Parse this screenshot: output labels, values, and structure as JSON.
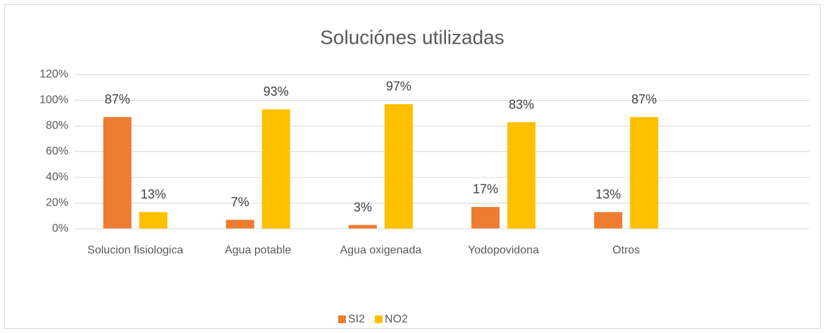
{
  "chart_data": {
    "type": "bar",
    "title": "Soluciónes utilizadas",
    "categories": [
      "Solucion fisiologica",
      "Agua potable",
      "Agua oxigenada",
      "Yodopovidona",
      "Otros",
      null
    ],
    "series": [
      {
        "name": "SI2",
        "color": "#ed7d31",
        "values": [
          87,
          7,
          3,
          17,
          13,
          null
        ],
        "value_labels": [
          "87%",
          "7%",
          "3%",
          "17%",
          "13%",
          null
        ]
      },
      {
        "name": "NO2",
        "color": "#ffc000",
        "values": [
          13,
          93,
          97,
          83,
          87,
          null
        ],
        "value_labels": [
          "13%",
          "93%",
          "97%",
          "83%",
          "87%",
          null
        ]
      }
    ],
    "ylim": [
      0,
      120
    ],
    "yticks": [
      {
        "value": 0,
        "label": "0%"
      },
      {
        "value": 20,
        "label": "20%"
      },
      {
        "value": 40,
        "label": "40%"
      },
      {
        "value": 60,
        "label": "60%"
      },
      {
        "value": 80,
        "label": "80%"
      },
      {
        "value": 100,
        "label": "100%"
      },
      {
        "value": 120,
        "label": "120%"
      }
    ],
    "grid": true,
    "legend": "bottom"
  }
}
